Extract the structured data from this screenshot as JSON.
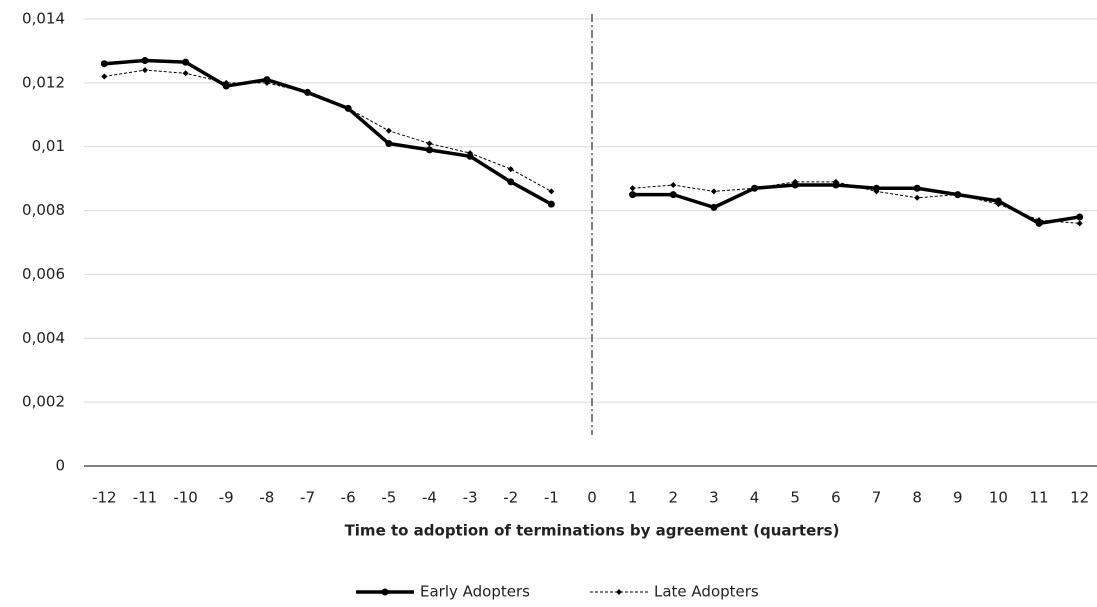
{
  "chart_data": {
    "type": "line",
    "x_label": "Time to adoption of terminations by agreement (quarters)",
    "categories": [
      "-12",
      "-11",
      "-10",
      "-9",
      "-8",
      "-7",
      "-6",
      "-5",
      "-4",
      "-3",
      "-2",
      "-1",
      "0",
      "1",
      "2",
      "3",
      "4",
      "5",
      "6",
      "7",
      "8",
      "9",
      "10",
      "11",
      "12"
    ],
    "series": [
      {
        "name": "Early Adopters",
        "color": "#000000",
        "style": "solid",
        "values": [
          0.0126,
          0.0127,
          0.01265,
          0.0119,
          0.0121,
          0.0117,
          0.0112,
          0.0101,
          0.0099,
          0.0097,
          0.0089,
          0.0082,
          null,
          0.0085,
          0.0085,
          0.0081,
          0.0087,
          0.0088,
          0.0088,
          0.0087,
          0.0087,
          0.0085,
          0.0083,
          0.0076,
          0.0078
        ]
      },
      {
        "name": "Late Adopters",
        "color": "#000000",
        "style": "dashed",
        "values": [
          0.0122,
          0.0124,
          0.0123,
          0.012,
          0.012,
          0.0117,
          0.0112,
          0.0105,
          0.0101,
          0.0098,
          0.0093,
          0.0086,
          null,
          0.0087,
          0.0088,
          0.0086,
          0.0087,
          0.0089,
          0.0089,
          0.0086,
          0.0084,
          0.0085,
          0.0082,
          0.0077,
          0.0076
        ]
      }
    ],
    "ylim": [
      0,
      0.014
    ],
    "yticks": [
      0,
      {
        "value": 0.002,
        "label": "0,002"
      },
      {
        "value": 0.004,
        "label": "0,004"
      },
      {
        "value": 0.006,
        "label": "0,006"
      },
      {
        "value": 0.008,
        "label": "0,008"
      },
      {
        "value": 0.01,
        "label": "0,01"
      },
      {
        "value": 0.012,
        "label": "0,012"
      },
      {
        "value": 0.014,
        "label": "0,014"
      }
    ],
    "grid": true,
    "legend": "bottom"
  }
}
